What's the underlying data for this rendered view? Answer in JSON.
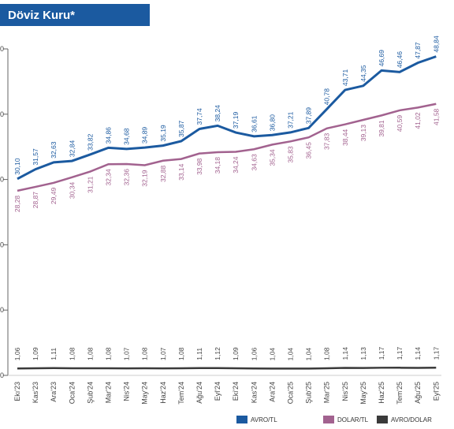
{
  "chart_data": {
    "type": "line",
    "title": "Döviz Kuru*",
    "categories": [
      "Ekı'23",
      "Kas'23",
      "Ara'23",
      "Oca'24",
      "Şub'24",
      "Mar'24",
      "Nis'24",
      "May'24",
      "Haz'24",
      "Tem'24",
      "Ağu'24",
      "Eyl'24",
      "Eki'24",
      "Kas'24",
      "Ara'24",
      "Oca'25",
      "Şub'25",
      "Mar'25",
      "Nis'25",
      "May'25",
      "Haz'25",
      "Tem'25",
      "Ağu'25",
      "Eyl'25"
    ],
    "series": [
      {
        "name": "AVRO/TL",
        "color": "#1b5aa0",
        "values": [
          30.1,
          31.57,
          32.63,
          32.84,
          33.82,
          34.86,
          34.68,
          34.89,
          35.19,
          35.87,
          37.74,
          38.24,
          37.19,
          36.61,
          36.8,
          37.21,
          37.89,
          40.78,
          43.71,
          44.35,
          46.69,
          46.46,
          47.87,
          48.84
        ],
        "value_labels": [
          "30,10",
          "31,57",
          "32,63",
          "32,84",
          "33,82",
          "34,86",
          "34,68",
          "34,89",
          "35,19",
          "35,87",
          "37,74",
          "38,24",
          "37,19",
          "36,61",
          "36,80",
          "37,21",
          "37,89",
          "40,78",
          "43,71",
          "44,35",
          "46,69",
          "46,46",
          "47,87",
          "48,84"
        ]
      },
      {
        "name": "DOLAR/TL",
        "color": "#a2628f",
        "values": [
          28.28,
          28.87,
          29.49,
          30.34,
          31.21,
          32.34,
          32.36,
          32.19,
          32.88,
          33.14,
          33.98,
          34.18,
          34.24,
          34.63,
          35.34,
          35.83,
          36.45,
          37.83,
          38.44,
          39.13,
          39.81,
          40.59,
          41.02,
          41.58
        ],
        "value_labels": [
          "28,28",
          "28,87",
          "29,49",
          "30,34",
          "31,21",
          "32,34",
          "32,36",
          "32,19",
          "32,88",
          "33,14",
          "33,98",
          "34,18",
          "34,24",
          "34,63",
          "35,34",
          "35,83",
          "36,45",
          "37,83",
          "38,44",
          "39,13",
          "39,81",
          "40,59",
          "41,02",
          "41,58"
        ]
      },
      {
        "name": "AVRO/DOLAR",
        "color": "#3a3a3a",
        "values": [
          1.06,
          1.09,
          1.11,
          1.08,
          1.08,
          1.08,
          1.07,
          1.08,
          1.07,
          1.08,
          1.11,
          1.12,
          1.09,
          1.06,
          1.04,
          1.04,
          1.04,
          1.08,
          1.14,
          1.13,
          1.17,
          1.17,
          1.14,
          1.17
        ],
        "value_labels": [
          "1,06",
          "1,09",
          "1,11",
          "1,08",
          "1,08",
          "1,08",
          "1,07",
          "1,08",
          "1,07",
          "1,08",
          "1,11",
          "1,12",
          "1,09",
          "1,06",
          "1,04",
          "1,04",
          "1,04",
          "1,08",
          "1,14",
          "1,13",
          "1,17",
          "1,17",
          "1,14",
          "1,17"
        ]
      }
    ],
    "ylim": [
      0,
      50
    ],
    "yticks": [
      0,
      10,
      20,
      30,
      40,
      50
    ]
  }
}
